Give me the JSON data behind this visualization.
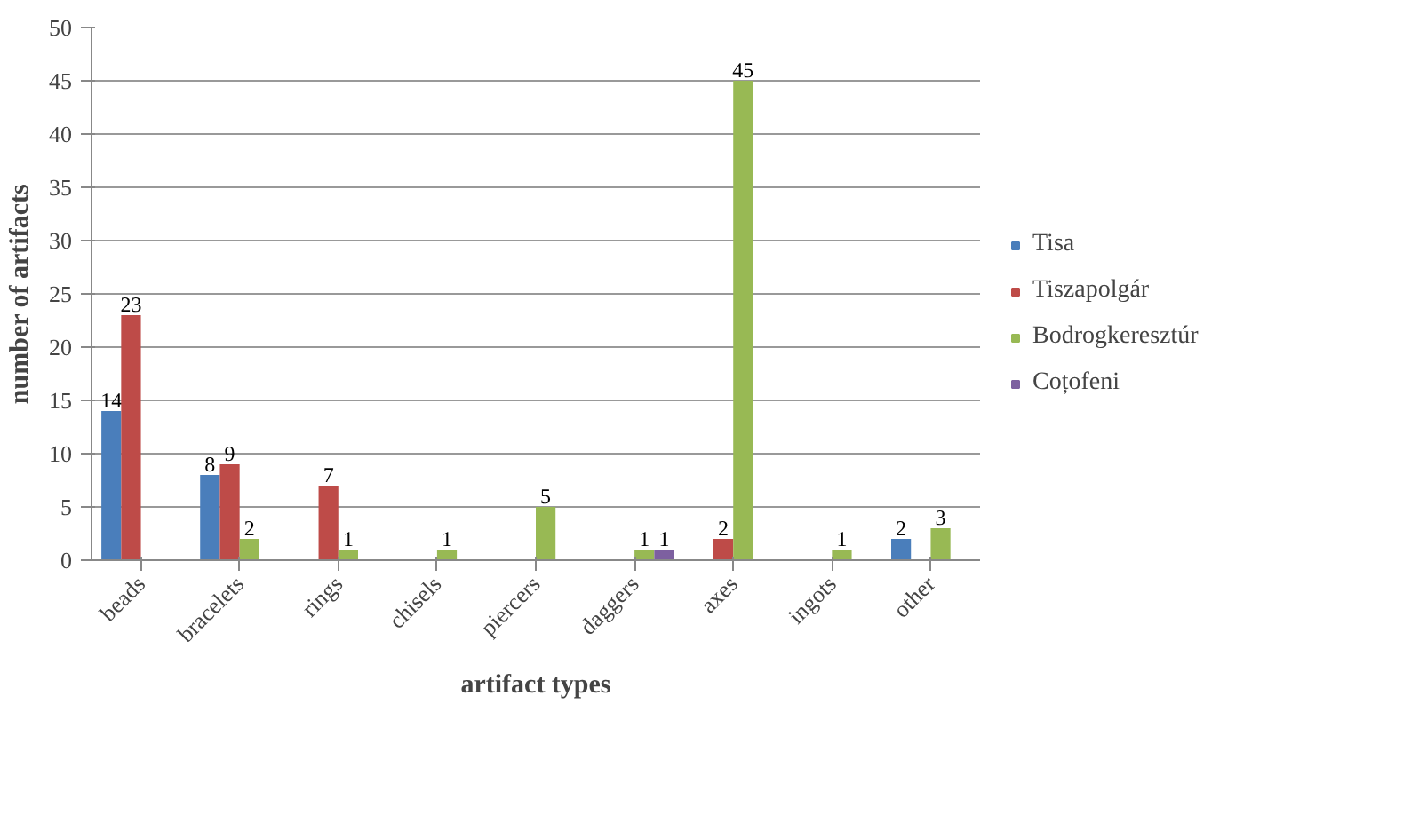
{
  "chart_data": {
    "type": "bar",
    "xlabel": "artifact types",
    "ylabel": "number of artifacts",
    "categories": [
      "beads",
      "bracelets",
      "rings",
      "chisels",
      "piercers",
      "daggers",
      "axes",
      "ingots",
      "other"
    ],
    "series": [
      {
        "name": "Tisa",
        "color": "#4a7ebb",
        "values": [
          14,
          8,
          0,
          0,
          0,
          0,
          0,
          0,
          2
        ],
        "value_labels": [
          "14",
          "8",
          null,
          null,
          null,
          null,
          null,
          null,
          "2"
        ]
      },
      {
        "name": "Tiszapolgár",
        "color": "#be4b48",
        "values": [
          23,
          9,
          7,
          0,
          0,
          0,
          2,
          0,
          0
        ],
        "value_labels": [
          "23",
          "9",
          "7",
          null,
          null,
          null,
          "2",
          null,
          null
        ]
      },
      {
        "name": "Bodrogkeresztúr",
        "color": "#98b954",
        "values": [
          0,
          2,
          1,
          1,
          5,
          1,
          45,
          1,
          3
        ],
        "value_labels": [
          null,
          "2",
          "1",
          "1",
          "5",
          "1",
          "45",
          "1",
          "3"
        ]
      },
      {
        "name": "Coțofeni",
        "color": "#7d60a0",
        "values": [
          0,
          0,
          0,
          0,
          0,
          1,
          0,
          0,
          0
        ],
        "value_labels": [
          null,
          null,
          null,
          null,
          null,
          "1",
          null,
          null,
          null
        ]
      }
    ],
    "ylim": [
      0,
      50
    ],
    "yticks": [
      0,
      5,
      10,
      15,
      20,
      25,
      30,
      35,
      40,
      45,
      50
    ],
    "grid": "y",
    "legend": "right"
  }
}
